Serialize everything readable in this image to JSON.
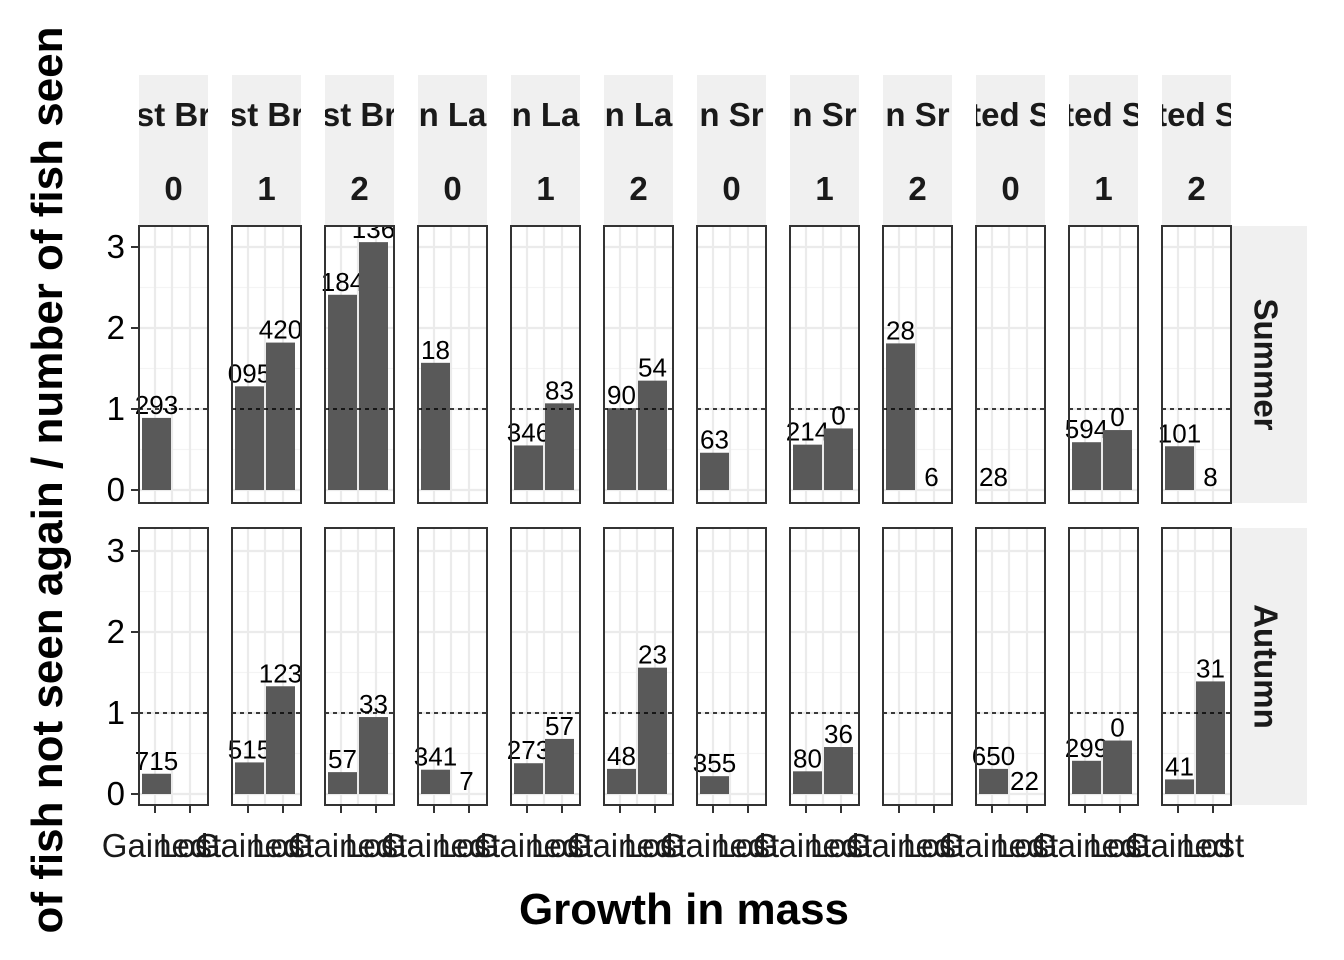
{
  "chart_data": {
    "type": "bar",
    "xlabel": "Growth in mass",
    "ylabel": "of fish not seen again / number of fish seen",
    "ylim": [
      0,
      3.3
    ],
    "yticks": [
      "0",
      "1",
      "2",
      "3"
    ],
    "reference_line": 1,
    "categories": [
      "Gained",
      "Lost"
    ],
    "category_labels": [
      "Gained",
      "Lost"
    ],
    "facet_rows": [
      "Summer",
      "Autumn"
    ],
    "facet_cols": [
      {
        "group": "st Br",
        "level": "0"
      },
      {
        "group": "st Br",
        "level": "1"
      },
      {
        "group": "st Br",
        "level": "2"
      },
      {
        "group": "n La",
        "level": "0"
      },
      {
        "group": "n La",
        "level": "1"
      },
      {
        "group": "n La",
        "level": "2"
      },
      {
        "group": "n Sr",
        "level": "0"
      },
      {
        "group": "n Sr",
        "level": "1"
      },
      {
        "group": "n Sr",
        "level": "2"
      },
      {
        "group": "ted S",
        "level": "0"
      },
      {
        "group": "ted S",
        "level": "1"
      },
      {
        "group": "ted S",
        "level": "2"
      }
    ],
    "panels": [
      [
        [
          {
            "value": 0.89,
            "label": "293"
          },
          null
        ],
        [
          {
            "value": 1.28,
            "label": "095"
          },
          {
            "value": 1.82,
            "label": "420"
          }
        ],
        [
          {
            "value": 2.41,
            "label": "184"
          },
          {
            "value": 3.06,
            "label": "136"
          }
        ],
        [
          {
            "value": 1.57,
            "label": "18"
          },
          null
        ],
        [
          {
            "value": 0.55,
            "label": "346"
          },
          {
            "value": 1.07,
            "label": "83"
          }
        ],
        [
          {
            "value": 1.01,
            "label": "90"
          },
          {
            "value": 1.35,
            "label": "54"
          }
        ],
        [
          {
            "value": 0.46,
            "label": "63"
          },
          null
        ],
        [
          {
            "value": 0.56,
            "label": "214"
          },
          {
            "value": 0.76,
            "label": "0"
          }
        ],
        [
          {
            "value": 1.81,
            "label": "28"
          },
          {
            "value": 0,
            "label": "6"
          }
        ],
        [
          {
            "value": 0,
            "label": "28"
          },
          null
        ],
        [
          {
            "value": 0.59,
            "label": "594"
          },
          {
            "value": 0.74,
            "label": "0"
          }
        ],
        [
          {
            "value": 0.54,
            "label": "101"
          },
          {
            "value": 0,
            "label": "8"
          }
        ]
      ],
      [
        [
          {
            "value": 0.25,
            "label": "715"
          },
          null
        ],
        [
          {
            "value": 0.39,
            "label": "515"
          },
          {
            "value": 1.33,
            "label": "123"
          }
        ],
        [
          {
            "value": 0.27,
            "label": "57"
          },
          {
            "value": 0.95,
            "label": "33"
          }
        ],
        [
          {
            "value": 0.3,
            "label": "341"
          },
          {
            "value": 0,
            "label": "7"
          }
        ],
        [
          {
            "value": 0.38,
            "label": "273"
          },
          {
            "value": 0.68,
            "label": "57"
          }
        ],
        [
          {
            "value": 0.31,
            "label": "48"
          },
          {
            "value": 1.56,
            "label": "23"
          }
        ],
        [
          {
            "value": 0.22,
            "label": "355"
          },
          null
        ],
        [
          {
            "value": 0.28,
            "label": "80"
          },
          {
            "value": 0.58,
            "label": "36"
          }
        ],
        [
          null,
          null
        ],
        [
          {
            "value": 0.31,
            "label": "650"
          },
          {
            "value": 0,
            "label": "22"
          }
        ],
        [
          {
            "value": 0.41,
            "label": "299"
          },
          {
            "value": 0.66,
            "label": "0"
          }
        ],
        [
          {
            "value": 0.18,
            "label": "41"
          },
          {
            "value": 1.39,
            "label": "31"
          }
        ]
      ]
    ],
    "colors": {
      "bar": "#595959",
      "strip": "#f0f0f0",
      "grid": "#ebebeb",
      "panel_border": "#333333"
    }
  }
}
